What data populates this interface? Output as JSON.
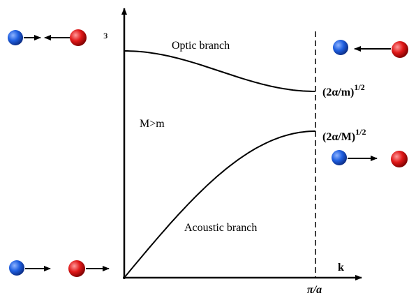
{
  "axis": {
    "y_label": "з",
    "x_label": "k",
    "x_end_label": "π/a"
  },
  "optic": {
    "label": "Optic branch",
    "limit_base": "(2α/m)",
    "limit_exp": "1/2"
  },
  "acoustic": {
    "label": "Acoustic branch",
    "limit_base": "(2α/M)",
    "limit_exp": "1/2"
  },
  "condition": "M>m"
}
